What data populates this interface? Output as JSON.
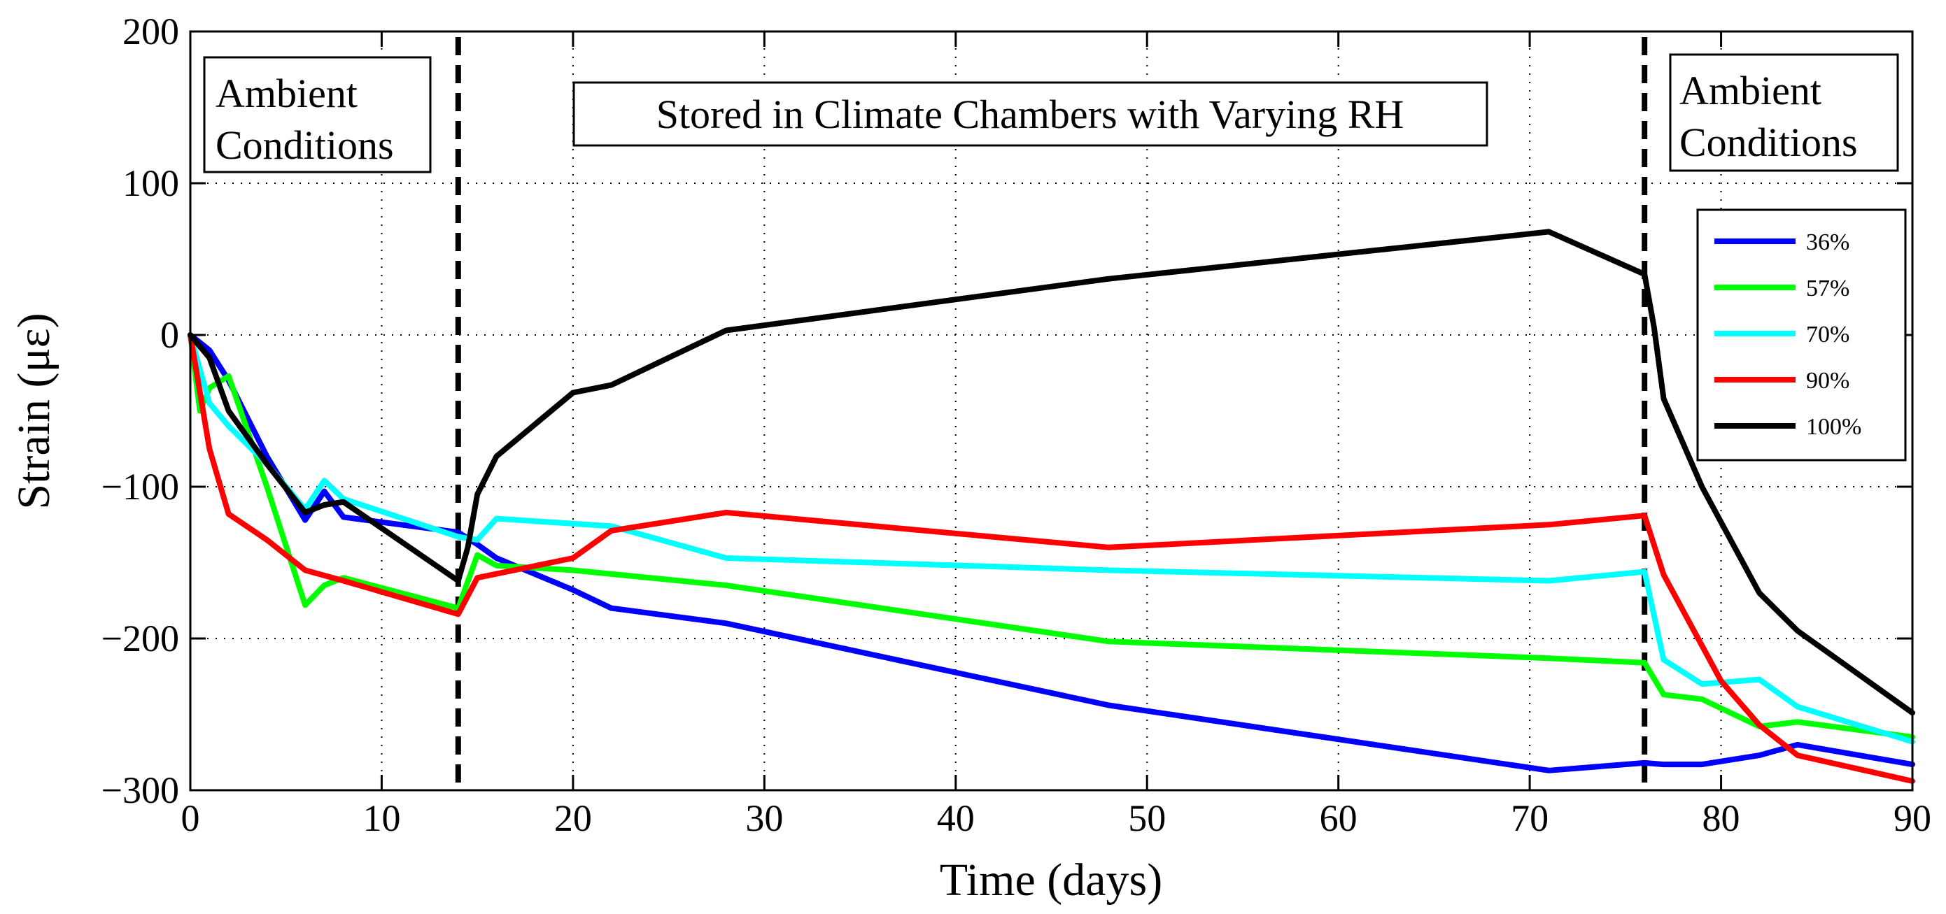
{
  "chart_data": {
    "type": "line",
    "title": "",
    "xlabel": "Time (days)",
    "ylabel": "Strain (με)",
    "xlim": [
      0,
      90
    ],
    "ylim": [
      -300,
      200
    ],
    "xticks": [
      0,
      10,
      20,
      30,
      40,
      50,
      60,
      70,
      80,
      90
    ],
    "yticks": [
      -300,
      -200,
      -100,
      0,
      100,
      200
    ],
    "xtick_labels": [
      "0",
      "10",
      "20",
      "30",
      "40",
      "50",
      "60",
      "70",
      "80",
      "90"
    ],
    "ytick_labels": [
      "−300",
      "−200",
      "−100",
      "0",
      "100",
      "200"
    ],
    "grid": true,
    "legend_position": "right",
    "vlines": [
      14,
      76
    ],
    "annotations": [
      {
        "lines": [
          "Ambient",
          "Conditions"
        ],
        "region": "left"
      },
      {
        "lines": [
          "Stored in Climate Chambers with Varying RH"
        ],
        "region": "center"
      },
      {
        "lines": [
          "Ambient",
          "Conditions"
        ],
        "region": "right"
      }
    ],
    "series": [
      {
        "name": "36%",
        "color": "#0000ff",
        "x": [
          0,
          1,
          2,
          4,
          6,
          7,
          8,
          14,
          15,
          16,
          20,
          22,
          28,
          48,
          71,
          76,
          77,
          79,
          82,
          84,
          90
        ],
        "y": [
          0,
          -10,
          -30,
          -80,
          -122,
          -103,
          -120,
          -130,
          -138,
          -147,
          -168,
          -180,
          -190,
          -244,
          -287,
          -282,
          -283,
          -283,
          -277,
          -270,
          -283
        ]
      },
      {
        "name": "57%",
        "color": "#00ff00",
        "x": [
          0,
          0.5,
          1,
          2,
          4,
          6,
          7,
          8,
          14,
          15,
          16,
          20,
          28,
          48,
          71,
          76,
          77,
          79,
          82,
          84,
          90
        ],
        "y": [
          0,
          -50,
          -35,
          -27,
          -100,
          -178,
          -165,
          -160,
          -180,
          -145,
          -152,
          -155,
          -165,
          -202,
          -213,
          -216,
          -237,
          -240,
          -258,
          -255,
          -265
        ]
      },
      {
        "name": "70%",
        "color": "#00ffff",
        "x": [
          0,
          1,
          2,
          4,
          6,
          7,
          8,
          14,
          15,
          16,
          22,
          28,
          48,
          71,
          76,
          77,
          79,
          82,
          84,
          90
        ],
        "y": [
          0,
          -45,
          -60,
          -85,
          -115,
          -96,
          -108,
          -133,
          -135,
          -121,
          -126,
          -147,
          -155,
          -162,
          -156,
          -214,
          -230,
          -227,
          -245,
          -268
        ]
      },
      {
        "name": "90%",
        "color": "#ff0000",
        "x": [
          0,
          1,
          2,
          4,
          6,
          8,
          14,
          15,
          20,
          22,
          28,
          48,
          71,
          76,
          77,
          80,
          82,
          84,
          90
        ],
        "y": [
          0,
          -75,
          -118,
          -135,
          -155,
          -162,
          -184,
          -160,
          -147,
          -129,
          -117,
          -140,
          -125,
          -119,
          -158,
          -228,
          -257,
          -277,
          -294
        ]
      },
      {
        "name": "100%",
        "color": "#000000",
        "x": [
          0,
          1,
          2,
          4,
          6,
          7,
          8,
          14,
          14.5,
          15,
          16,
          20,
          22,
          28,
          48,
          71,
          76,
          76.5,
          77,
          79,
          82,
          84,
          90
        ],
        "y": [
          0,
          -15,
          -50,
          -85,
          -117,
          -112,
          -110,
          -162,
          -140,
          -105,
          -80,
          -38,
          -33,
          3,
          37,
          68,
          40,
          5,
          -42,
          -100,
          -170,
          -195,
          -249
        ]
      }
    ]
  }
}
